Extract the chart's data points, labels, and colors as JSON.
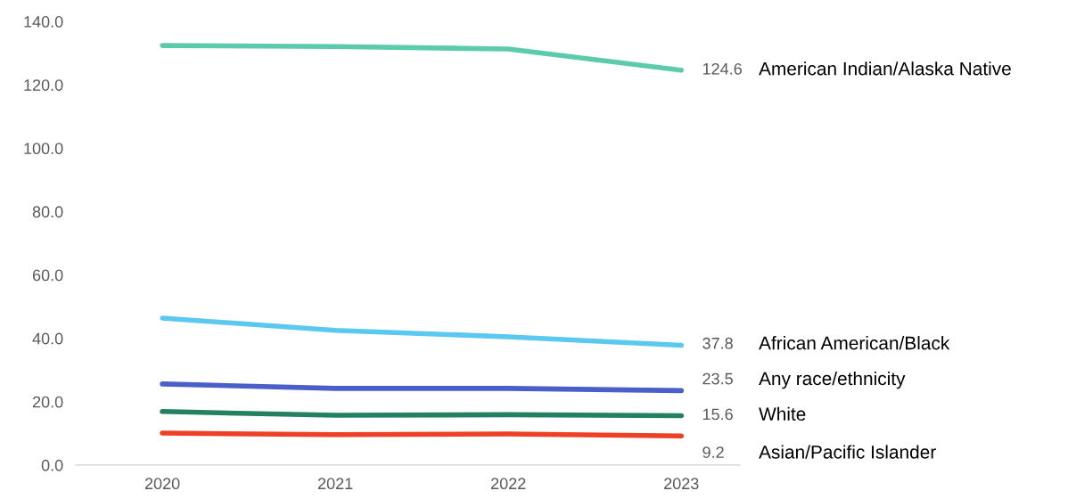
{
  "chart_data": {
    "type": "line",
    "categories": [
      "2020",
      "2021",
      "2022",
      "2023"
    ],
    "ylim": [
      0,
      140
    ],
    "yticks": [
      {
        "value": 0,
        "label": "0.0"
      },
      {
        "value": 20,
        "label": "20.0"
      },
      {
        "value": 40,
        "label": "40.0"
      },
      {
        "value": 60,
        "label": "60.0"
      },
      {
        "value": 80,
        "label": "80.0"
      },
      {
        "value": 100,
        "label": "100.0"
      },
      {
        "value": 120,
        "label": "120.0"
      },
      {
        "value": 140,
        "label": "140.0"
      }
    ],
    "grid": false,
    "legend": false,
    "marker": "none",
    "line_style": "solid",
    "series": [
      {
        "name": "American Indian/Alaska Native",
        "color": "#5ccbab",
        "values": [
          132.4,
          132.1,
          131.3,
          124.6
        ],
        "value_labels": [
          null,
          null,
          null,
          "124.6"
        ]
      },
      {
        "name": "African American/Black",
        "color": "#5bc8f0",
        "values": [
          46.4,
          42.5,
          40.5,
          37.8
        ],
        "value_labels": [
          null,
          null,
          null,
          "37.8"
        ]
      },
      {
        "name": "Any race/ethnicity",
        "color": "#4a5fc8",
        "values": [
          25.6,
          24.2,
          24.2,
          23.5
        ],
        "value_labels": [
          null,
          null,
          null,
          "23.5"
        ]
      },
      {
        "name": "White",
        "color": "#238060",
        "values": [
          16.9,
          15.7,
          15.9,
          15.6
        ],
        "value_labels": [
          null,
          null,
          null,
          "15.6"
        ]
      },
      {
        "name": "Asian/Pacific Islander",
        "color": "#ee4026",
        "values": [
          10.1,
          9.6,
          9.8,
          9.2
        ],
        "value_labels": [
          null,
          null,
          null,
          "9.2"
        ]
      }
    ]
  }
}
